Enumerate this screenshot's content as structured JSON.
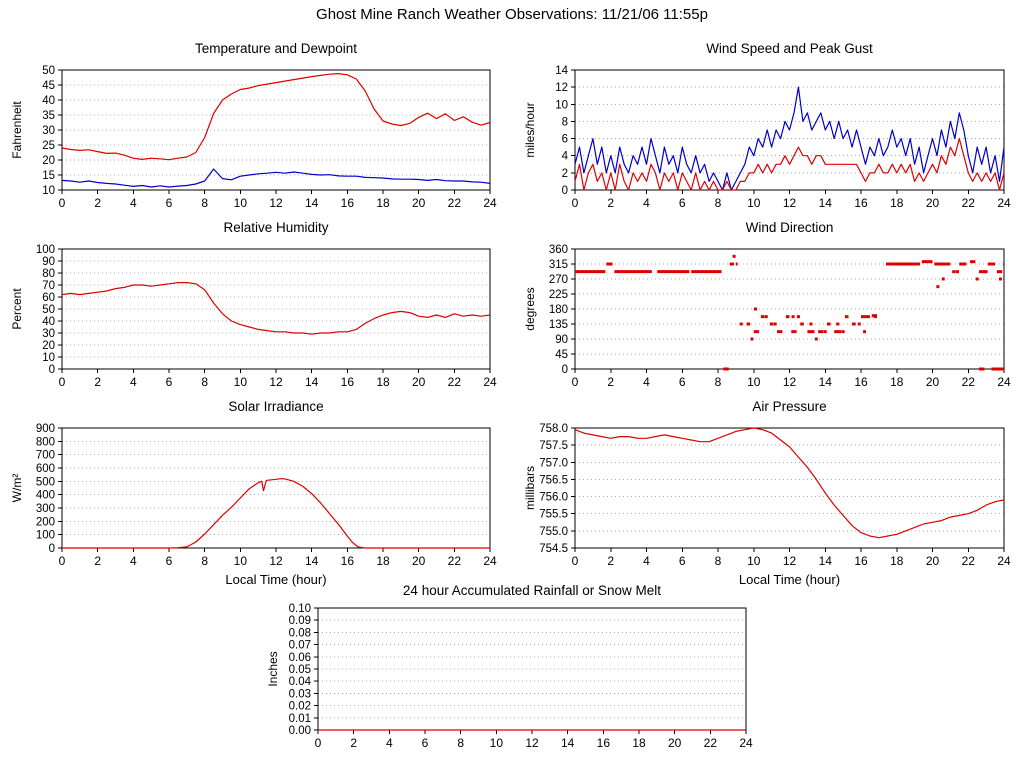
{
  "page_title": "Ghost Mine Ranch Weather Observations: 11/21/06 11:55p",
  "colors": {
    "red": "#dd0000",
    "blue": "#0000cc",
    "grid": "#aaaaaa",
    "axis": "#000000"
  },
  "chart_data": [
    {
      "id": "temperature",
      "type": "line",
      "title": "Temperature and Dewpoint",
      "xlabel": "",
      "ylabel": "Fahrenheit",
      "xlim": [
        0,
        24
      ],
      "ylim": [
        10,
        50
      ],
      "xticks": [
        0,
        2,
        4,
        6,
        8,
        10,
        12,
        14,
        16,
        18,
        20,
        22,
        24
      ],
      "yticks": [
        10,
        15,
        20,
        25,
        30,
        35,
        40,
        45,
        50
      ],
      "grid": true,
      "series": [
        {
          "name": "Temperature",
          "color": "#dd0000",
          "x_start": 0,
          "x_step": 0.5,
          "y": [
            24,
            23.5,
            23.2,
            23.4,
            22.8,
            22.2,
            22.3,
            21.6,
            20.6,
            20.2,
            20.6,
            20.4,
            20.1,
            20.6,
            21,
            22.5,
            27.5,
            35.5,
            40,
            42,
            43.5,
            44,
            44.8,
            45.3,
            45.8,
            46.3,
            46.8,
            47.3,
            47.8,
            48.2,
            48.6,
            48.8,
            48.4,
            47,
            43,
            37,
            33,
            32,
            31.5,
            32.2,
            34.2,
            35.6,
            33.8,
            35.4,
            33.2,
            34.4,
            32.6,
            31.6,
            32.5
          ]
        },
        {
          "name": "Dewpoint",
          "color": "#0000cc",
          "x_start": 0,
          "x_step": 0.5,
          "y": [
            13.2,
            13,
            12.6,
            13,
            12.5,
            12.2,
            12,
            11.6,
            11.2,
            11.5,
            11,
            11.4,
            11,
            11.3,
            11.5,
            12,
            13,
            17,
            13.8,
            13.4,
            14.6,
            15,
            15.4,
            15.6,
            15.9,
            15.6,
            16,
            15.6,
            15.2,
            15,
            15.1,
            14.7,
            14.6,
            14.6,
            14.2,
            14.1,
            14,
            13.7,
            13.6,
            13.6,
            13.5,
            13.2,
            13.5,
            13.1,
            13,
            13,
            12.7,
            12.6,
            12.2
          ]
        }
      ]
    },
    {
      "id": "wind_speed",
      "type": "line",
      "title": "Wind Speed and Peak Gust",
      "xlabel": "",
      "ylabel": "miles/hour",
      "xlim": [
        0,
        24
      ],
      "ylim": [
        0,
        14
      ],
      "xticks": [
        0,
        2,
        4,
        6,
        8,
        10,
        12,
        14,
        16,
        18,
        20,
        22,
        24
      ],
      "yticks": [
        0,
        2,
        4,
        6,
        8,
        10,
        12,
        14
      ],
      "grid": true,
      "series": [
        {
          "name": "Peak Gust",
          "color": "#0000cc",
          "x_start": 0,
          "x_step": 0.25,
          "y": [
            3,
            5,
            2,
            4,
            6,
            3,
            5,
            2,
            4,
            2,
            5,
            3,
            2,
            4,
            3,
            5,
            3,
            6,
            4,
            2,
            5,
            3,
            4,
            2,
            5,
            3,
            2,
            4,
            2,
            3,
            1,
            2,
            1,
            0,
            2,
            0,
            1,
            2,
            3,
            5,
            4,
            6,
            5,
            7,
            5,
            7,
            6,
            8,
            7,
            9,
            12,
            8,
            9,
            7,
            8,
            9,
            7,
            8,
            6,
            8,
            6,
            7,
            5,
            7,
            5,
            3,
            5,
            4,
            6,
            4,
            5,
            7,
            5,
            6,
            4,
            6,
            3,
            5,
            2,
            4,
            6,
            4,
            7,
            5,
            8,
            6,
            9,
            7,
            4,
            2,
            5,
            3,
            5,
            2,
            4,
            1,
            5
          ]
        },
        {
          "name": "Wind Speed",
          "color": "#dd0000",
          "x_start": 0,
          "x_step": 0.25,
          "y": [
            1,
            3,
            0,
            2,
            3,
            1,
            2,
            0,
            2,
            0,
            3,
            1,
            0,
            2,
            1,
            2,
            1,
            3,
            2,
            0,
            2,
            1,
            2,
            0,
            2,
            1,
            0,
            2,
            0,
            1,
            0,
            1,
            0,
            0,
            1,
            0,
            0,
            1,
            1,
            2,
            2,
            3,
            2,
            3,
            2,
            3,
            3,
            4,
            3,
            4,
            5,
            4,
            4,
            3,
            4,
            4,
            3,
            3,
            3,
            3,
            3,
            3,
            3,
            3,
            2,
            1,
            2,
            2,
            3,
            2,
            2,
            3,
            2,
            3,
            2,
            3,
            1,
            2,
            1,
            2,
            3,
            2,
            4,
            3,
            5,
            4,
            6,
            4,
            2,
            1,
            2,
            1,
            2,
            1,
            2,
            0,
            2
          ]
        }
      ]
    },
    {
      "id": "humidity",
      "type": "line",
      "title": "Relative Humidity",
      "xlabel": "",
      "ylabel": "Percent",
      "xlim": [
        0,
        24
      ],
      "ylim": [
        0,
        100
      ],
      "xticks": [
        0,
        2,
        4,
        6,
        8,
        10,
        12,
        14,
        16,
        18,
        20,
        22,
        24
      ],
      "yticks": [
        0,
        10,
        20,
        30,
        40,
        50,
        60,
        70,
        80,
        90,
        100
      ],
      "grid": true,
      "series": [
        {
          "name": "Relative Humidity",
          "color": "#dd0000",
          "x_start": 0,
          "x_step": 0.5,
          "y": [
            62,
            63,
            62,
            63,
            64,
            65,
            67,
            68,
            70,
            70,
            69,
            70,
            71,
            72,
            72,
            71,
            66,
            55,
            46,
            40,
            37,
            35,
            33,
            32,
            31,
            31,
            30,
            30,
            29,
            30,
            30,
            31,
            31,
            33,
            38,
            42,
            45,
            47,
            48,
            47,
            44,
            43,
            45,
            43,
            46,
            44,
            45,
            44,
            45
          ]
        }
      ]
    },
    {
      "id": "wind_direction",
      "type": "scatter",
      "title": "Wind Direction",
      "xlabel": "",
      "ylabel": "degrees",
      "xlim": [
        0,
        24
      ],
      "ylim": [
        0,
        360
      ],
      "xticks": [
        0,
        2,
        4,
        6,
        8,
        10,
        12,
        14,
        16,
        18,
        20,
        22,
        24
      ],
      "yticks": [
        0,
        45,
        90,
        135,
        180,
        225,
        270,
        315,
        360
      ],
      "grid": true,
      "color": "#dd0000",
      "runs": [
        [
          292,
          0,
          1.7
        ],
        [
          315,
          1.75,
          2.1
        ],
        [
          292,
          2.2,
          4.3
        ],
        [
          292,
          4.6,
          6.4
        ],
        [
          292,
          6.5,
          8.2
        ],
        [
          0,
          8.3,
          8.6
        ],
        [
          315,
          8.65,
          8.9
        ],
        [
          315,
          9.0,
          9.1
        ],
        [
          135,
          9.6,
          9.8
        ],
        [
          112,
          10.0,
          10.3
        ],
        [
          157,
          10.4,
          10.6
        ],
        [
          135,
          10.9,
          11.1
        ],
        [
          112,
          11.3,
          11.6
        ],
        [
          157,
          11.8,
          12.0
        ],
        [
          112,
          12.1,
          12.4
        ],
        [
          135,
          12.6,
          12.8
        ],
        [
          112,
          13.0,
          13.4
        ],
        [
          112,
          13.6,
          13.9
        ],
        [
          135,
          14.1,
          14.3
        ],
        [
          112,
          14.5,
          14.9
        ],
        [
          157,
          15.1,
          15.3
        ],
        [
          135,
          15.5,
          15.7
        ],
        [
          157,
          16.0,
          16.5
        ],
        [
          160,
          16.6,
          16.9
        ],
        [
          315,
          17.4,
          19.3
        ],
        [
          322,
          19.4,
          20.0
        ],
        [
          315,
          20.1,
          21.0
        ],
        [
          292,
          21.1,
          21.3
        ],
        [
          315,
          21.5,
          21.9
        ],
        [
          322,
          22.1,
          22.4
        ],
        [
          292,
          22.6,
          23.0
        ],
        [
          315,
          23.1,
          23.5
        ],
        [
          292,
          23.6,
          23.9
        ],
        [
          315,
          23.95,
          24
        ],
        [
          0,
          22.6,
          22.9
        ],
        [
          0,
          23.3,
          24
        ]
      ],
      "dots": [
        [
          8.9,
          338
        ],
        [
          9.3,
          135
        ],
        [
          9.9,
          90
        ],
        [
          10.1,
          180
        ],
        [
          10.7,
          157
        ],
        [
          11.2,
          135
        ],
        [
          12.2,
          157
        ],
        [
          12.5,
          157
        ],
        [
          13.2,
          135
        ],
        [
          13.5,
          90
        ],
        [
          14.0,
          112
        ],
        [
          14.7,
          135
        ],
        [
          15.0,
          112
        ],
        [
          15.9,
          135
        ],
        [
          16.2,
          112
        ],
        [
          16.8,
          157
        ],
        [
          20.3,
          247
        ],
        [
          20.6,
          270
        ],
        [
          21.4,
          292
        ],
        [
          22.5,
          270
        ],
        [
          23.0,
          292
        ],
        [
          23.8,
          270
        ]
      ]
    },
    {
      "id": "solar",
      "type": "line",
      "title": "Solar Irradiance",
      "xlabel": "Local Time (hour)",
      "ylabel": "W/m²",
      "xlim": [
        0,
        24
      ],
      "ylim": [
        0,
        900
      ],
      "xticks": [
        0,
        2,
        4,
        6,
        8,
        10,
        12,
        14,
        16,
        18,
        20,
        22,
        24
      ],
      "yticks": [
        0,
        100,
        200,
        300,
        400,
        500,
        600,
        700,
        800,
        900
      ],
      "grid": true,
      "series": [
        {
          "name": "Solar Irradiance",
          "color": "#dd0000",
          "x": [
            0,
            1,
            2,
            3,
            4,
            5,
            6,
            6.5,
            7,
            7.5,
            8,
            8.5,
            9,
            9.5,
            10,
            10.5,
            11,
            11.2,
            11.3,
            11.45,
            11.5,
            12,
            12.25,
            12.5,
            13,
            13.5,
            14,
            14.5,
            15,
            15.5,
            16,
            16.3,
            16.6,
            17,
            18,
            19,
            20,
            21,
            22,
            23,
            24
          ],
          "y": [
            0,
            0,
            0,
            0,
            0,
            0,
            0,
            2,
            8,
            45,
            105,
            175,
            245,
            305,
            375,
            445,
            490,
            500,
            430,
            505,
            508,
            515,
            520,
            518,
            500,
            462,
            408,
            338,
            258,
            178,
            90,
            40,
            8,
            0,
            0,
            0,
            0,
            0,
            0,
            0,
            0
          ]
        }
      ]
    },
    {
      "id": "pressure",
      "type": "line",
      "title": "Air Pressure",
      "xlabel": "Local Time (hour)",
      "ylabel": "millibars",
      "xlim": [
        0,
        24
      ],
      "ylim": [
        754.5,
        758.0
      ],
      "xticks": [
        0,
        2,
        4,
        6,
        8,
        10,
        12,
        14,
        16,
        18,
        20,
        22,
        24
      ],
      "yticks": [
        754.5,
        755.0,
        755.5,
        756.0,
        756.5,
        757.0,
        757.5,
        758.0
      ],
      "ytick_labels": [
        "754.5",
        "755.0",
        "755.5",
        "756.0",
        "756.5",
        "757.0",
        "757.5",
        "758.0"
      ],
      "grid": true,
      "series": [
        {
          "name": "Air Pressure",
          "color": "#dd0000",
          "x_start": 0,
          "x_step": 0.5,
          "y": [
            757.95,
            757.85,
            757.8,
            757.75,
            757.7,
            757.75,
            757.75,
            757.7,
            757.7,
            757.75,
            757.8,
            757.75,
            757.7,
            757.65,
            757.6,
            757.6,
            757.7,
            757.8,
            757.9,
            757.95,
            758,
            757.95,
            757.85,
            757.65,
            757.45,
            757.15,
            756.85,
            756.5,
            756.1,
            755.75,
            755.45,
            755.15,
            754.95,
            754.85,
            754.8,
            754.85,
            754.9,
            755,
            755.1,
            755.2,
            755.25,
            755.3,
            755.4,
            755.45,
            755.5,
            755.6,
            755.75,
            755.85,
            755.9
          ]
        }
      ]
    },
    {
      "id": "rainfall",
      "type": "line",
      "title": "24 hour Accumulated Rainfall or Snow Melt",
      "xlabel": "",
      "ylabel": "Inches",
      "xlim": [
        0,
        24
      ],
      "ylim": [
        0,
        0.1
      ],
      "xticks": [
        0,
        2,
        4,
        6,
        8,
        10,
        12,
        14,
        16,
        18,
        20,
        22,
        24
      ],
      "yticks": [
        0,
        0.01,
        0.02,
        0.03,
        0.04,
        0.05,
        0.06,
        0.07,
        0.08,
        0.09,
        0.1
      ],
      "ytick_labels": [
        "0.00",
        "0.01",
        "0.02",
        "0.03",
        "0.04",
        "0.05",
        "0.06",
        "0.07",
        "0.08",
        "0.09",
        "0.10"
      ],
      "grid": true,
      "series": [
        {
          "name": "Accumulated Rainfall",
          "color": "#dd0000",
          "x": [
            0,
            24
          ],
          "y": [
            0,
            0
          ]
        }
      ]
    }
  ]
}
